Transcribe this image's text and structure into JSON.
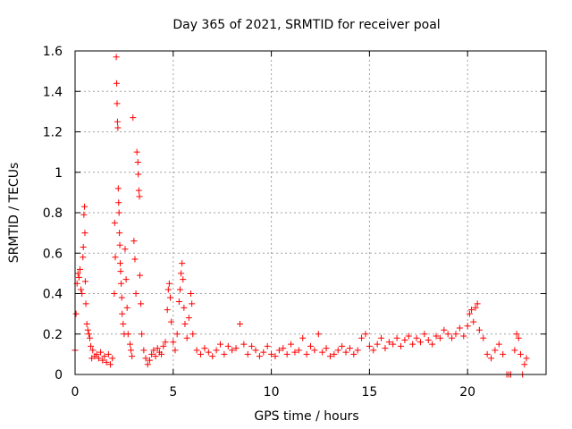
{
  "chart_data": {
    "type": "scatter",
    "title": "Day 365 of 2021, SRMTID for receiver poal",
    "xlabel": "GPS time / hours",
    "ylabel": "SRMTID / TECUs",
    "xlim": [
      0,
      24
    ],
    "ylim": [
      0,
      1.6
    ],
    "grid": true,
    "marker": "+",
    "x_ticks": [
      0,
      5,
      10,
      15,
      20
    ],
    "x_tick_labels": [
      "0",
      "5",
      "10",
      "15",
      "20"
    ],
    "y_ticks": [
      0,
      0.2,
      0.4,
      0.6,
      0.8,
      1.0,
      1.2,
      1.4,
      1.6
    ],
    "y_tick_labels": [
      "0",
      "0.2",
      "0.4",
      "0.6",
      "0.8",
      "1",
      "1.2",
      "1.4",
      "1.6"
    ],
    "colors": {
      "series": "#ff0000",
      "grid": "#a0a0a0",
      "axis": "#000000"
    },
    "series": [
      {
        "name": "SRMTID",
        "points": [
          [
            0.0,
            0.12
          ],
          [
            0.05,
            0.3
          ],
          [
            0.1,
            0.45
          ],
          [
            0.15,
            0.5
          ],
          [
            0.2,
            0.48
          ],
          [
            0.25,
            0.52
          ],
          [
            0.3,
            0.42
          ],
          [
            0.35,
            0.4
          ],
          [
            0.4,
            0.58
          ],
          [
            0.42,
            0.63
          ],
          [
            0.45,
            0.79
          ],
          [
            0.48,
            0.83
          ],
          [
            0.5,
            0.7
          ],
          [
            0.52,
            0.46
          ],
          [
            0.55,
            0.35
          ],
          [
            0.6,
            0.25
          ],
          [
            0.65,
            0.22
          ],
          [
            0.7,
            0.2
          ],
          [
            0.75,
            0.18
          ],
          [
            0.8,
            0.14
          ],
          [
            0.85,
            0.08
          ],
          [
            0.9,
            0.12
          ],
          [
            1.0,
            0.09
          ],
          [
            1.1,
            0.1
          ],
          [
            1.2,
            0.08
          ],
          [
            1.3,
            0.11
          ],
          [
            1.4,
            0.07
          ],
          [
            1.5,
            0.09
          ],
          [
            1.6,
            0.06
          ],
          [
            1.7,
            0.1
          ],
          [
            1.8,
            0.05
          ],
          [
            1.9,
            0.08
          ],
          [
            2.0,
            0.4
          ],
          [
            2.02,
            0.75
          ],
          [
            2.05,
            0.58
          ],
          [
            2.1,
            1.57
          ],
          [
            2.12,
            1.44
          ],
          [
            2.14,
            1.34
          ],
          [
            2.16,
            1.25
          ],
          [
            2.18,
            1.22
          ],
          [
            2.2,
            0.92
          ],
          [
            2.22,
            0.85
          ],
          [
            2.24,
            0.8
          ],
          [
            2.26,
            0.7
          ],
          [
            2.28,
            0.64
          ],
          [
            2.3,
            0.55
          ],
          [
            2.32,
            0.51
          ],
          [
            2.35,
            0.45
          ],
          [
            2.38,
            0.38
          ],
          [
            2.4,
            0.3
          ],
          [
            2.45,
            0.25
          ],
          [
            2.5,
            0.2
          ],
          [
            2.55,
            0.62
          ],
          [
            2.6,
            0.47
          ],
          [
            2.65,
            0.33
          ],
          [
            2.7,
            0.2
          ],
          [
            2.8,
            0.15
          ],
          [
            2.85,
            0.12
          ],
          [
            2.9,
            0.09
          ],
          [
            2.95,
            1.27
          ],
          [
            3.0,
            0.66
          ],
          [
            3.05,
            0.57
          ],
          [
            3.1,
            0.4
          ],
          [
            3.15,
            1.1
          ],
          [
            3.2,
            1.05
          ],
          [
            3.22,
            0.99
          ],
          [
            3.25,
            0.91
          ],
          [
            3.28,
            0.88
          ],
          [
            3.3,
            0.49
          ],
          [
            3.35,
            0.35
          ],
          [
            3.4,
            0.2
          ],
          [
            3.5,
            0.12
          ],
          [
            3.6,
            0.08
          ],
          [
            3.7,
            0.05
          ],
          [
            3.8,
            0.07
          ],
          [
            3.9,
            0.1
          ],
          [
            4.0,
            0.12
          ],
          [
            4.1,
            0.09
          ],
          [
            4.2,
            0.13
          ],
          [
            4.3,
            0.11
          ],
          [
            4.4,
            0.1
          ],
          [
            4.5,
            0.14
          ],
          [
            4.6,
            0.16
          ],
          [
            4.7,
            0.32
          ],
          [
            4.75,
            0.42
          ],
          [
            4.8,
            0.45
          ],
          [
            4.85,
            0.38
          ],
          [
            4.9,
            0.26
          ],
          [
            5.0,
            0.16
          ],
          [
            5.1,
            0.12
          ],
          [
            5.2,
            0.2
          ],
          [
            5.3,
            0.36
          ],
          [
            5.35,
            0.42
          ],
          [
            5.4,
            0.5
          ],
          [
            5.45,
            0.55
          ],
          [
            5.5,
            0.47
          ],
          [
            5.55,
            0.33
          ],
          [
            5.6,
            0.25
          ],
          [
            5.7,
            0.18
          ],
          [
            5.8,
            0.28
          ],
          [
            5.9,
            0.4
          ],
          [
            5.95,
            0.35
          ],
          [
            6.0,
            0.2
          ],
          [
            6.2,
            0.12
          ],
          [
            6.4,
            0.1
          ],
          [
            6.6,
            0.13
          ],
          [
            6.8,
            0.11
          ],
          [
            7.0,
            0.09
          ],
          [
            7.2,
            0.12
          ],
          [
            7.4,
            0.15
          ],
          [
            7.6,
            0.1
          ],
          [
            7.8,
            0.14
          ],
          [
            8.0,
            0.12
          ],
          [
            8.2,
            0.13
          ],
          [
            8.4,
            0.25
          ],
          [
            8.6,
            0.15
          ],
          [
            8.8,
            0.1
          ],
          [
            9.0,
            0.14
          ],
          [
            9.2,
            0.12
          ],
          [
            9.4,
            0.09
          ],
          [
            9.6,
            0.11
          ],
          [
            9.8,
            0.14
          ],
          [
            10.0,
            0.1
          ],
          [
            10.2,
            0.09
          ],
          [
            10.4,
            0.12
          ],
          [
            10.6,
            0.13
          ],
          [
            10.8,
            0.1
          ],
          [
            11.0,
            0.15
          ],
          [
            11.2,
            0.11
          ],
          [
            11.4,
            0.12
          ],
          [
            11.6,
            0.18
          ],
          [
            11.8,
            0.1
          ],
          [
            12.0,
            0.14
          ],
          [
            12.2,
            0.12
          ],
          [
            12.4,
            0.2
          ],
          [
            12.6,
            0.11
          ],
          [
            12.8,
            0.13
          ],
          [
            13.0,
            0.09
          ],
          [
            13.2,
            0.1
          ],
          [
            13.4,
            0.12
          ],
          [
            13.6,
            0.14
          ],
          [
            13.8,
            0.11
          ],
          [
            14.0,
            0.13
          ],
          [
            14.2,
            0.1
          ],
          [
            14.4,
            0.12
          ],
          [
            14.6,
            0.18
          ],
          [
            14.8,
            0.2
          ],
          [
            15.0,
            0.14
          ],
          [
            15.2,
            0.12
          ],
          [
            15.4,
            0.15
          ],
          [
            15.6,
            0.18
          ],
          [
            15.8,
            0.13
          ],
          [
            16.0,
            0.16
          ],
          [
            16.2,
            0.15
          ],
          [
            16.4,
            0.18
          ],
          [
            16.6,
            0.14
          ],
          [
            16.8,
            0.17
          ],
          [
            17.0,
            0.19
          ],
          [
            17.2,
            0.15
          ],
          [
            17.4,
            0.18
          ],
          [
            17.6,
            0.16
          ],
          [
            17.8,
            0.2
          ],
          [
            18.0,
            0.17
          ],
          [
            18.2,
            0.15
          ],
          [
            18.4,
            0.19
          ],
          [
            18.6,
            0.18
          ],
          [
            18.8,
            0.22
          ],
          [
            19.0,
            0.2
          ],
          [
            19.2,
            0.18
          ],
          [
            19.4,
            0.2
          ],
          [
            19.6,
            0.23
          ],
          [
            19.8,
            0.19
          ],
          [
            20.0,
            0.24
          ],
          [
            20.1,
            0.3
          ],
          [
            20.2,
            0.32
          ],
          [
            20.3,
            0.26
          ],
          [
            20.4,
            0.33
          ],
          [
            20.5,
            0.35
          ],
          [
            20.6,
            0.22
          ],
          [
            20.8,
            0.18
          ],
          [
            21.0,
            0.1
          ],
          [
            21.2,
            0.08
          ],
          [
            21.4,
            0.12
          ],
          [
            21.6,
            0.15
          ],
          [
            21.8,
            0.1
          ],
          [
            22.0,
            0.0
          ],
          [
            22.1,
            0.0
          ],
          [
            22.2,
            0.0
          ],
          [
            22.4,
            0.12
          ],
          [
            22.5,
            0.2
          ],
          [
            22.6,
            0.18
          ],
          [
            22.7,
            0.1
          ],
          [
            22.8,
            0.0
          ],
          [
            22.9,
            0.05
          ],
          [
            23.0,
            0.08
          ]
        ]
      }
    ]
  }
}
